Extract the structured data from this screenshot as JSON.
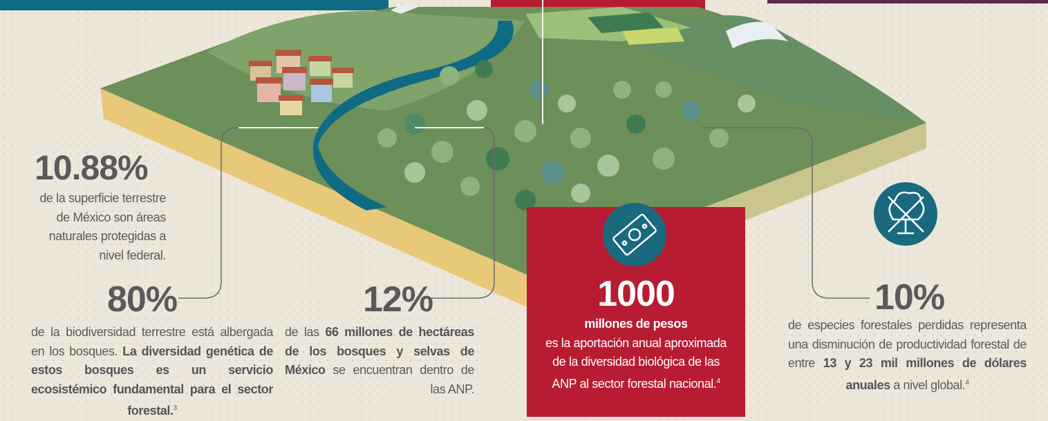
{
  "stats": [
    {
      "value": "10.88%",
      "description": [
        {
          "text": "de la superficie terrestre de México son áreas naturales protegidas a nivel federal.",
          "style": "normal"
        }
      ]
    },
    {
      "value": "80%",
      "description": [
        {
          "text": "de la biodiversidad terrestre está albergada en los bosques. ",
          "style": "normal"
        },
        {
          "text": "La diversidad genética de estos bosques es un servicio ecosistémico fundamental para el sector forestal.",
          "style": "bold"
        },
        {
          "text": "3",
          "style": "sup"
        }
      ]
    },
    {
      "value": "12%",
      "description": [
        {
          "text": "de las ",
          "style": "normal"
        },
        {
          "text": "66 millones de hectáreas de los bosques y selvas de México",
          "style": "bold"
        },
        {
          "text": " se encuentran dentro de las ANP.",
          "style": "normal"
        }
      ]
    },
    {
      "value": "1000",
      "description": [
        {
          "text": "millones de pesos",
          "style": "bold-line"
        },
        {
          "text": "es la aportación anual aproximada de la diversidad biológica de las ANP al sector forestal nacional.",
          "style": "normal"
        },
        {
          "text": "4",
          "style": "sup"
        }
      ]
    },
    {
      "value": "10%",
      "description": [
        {
          "text": "de especies forestales perdidas representa una disminución de productividad forestal de entre ",
          "style": "normal"
        },
        {
          "text": "13 y 23 mil millones de dólares anuales",
          "style": "bold"
        },
        {
          "text": " a nivel global.",
          "style": "normal"
        },
        {
          "text": "4",
          "style": "sup"
        }
      ]
    }
  ]
}
